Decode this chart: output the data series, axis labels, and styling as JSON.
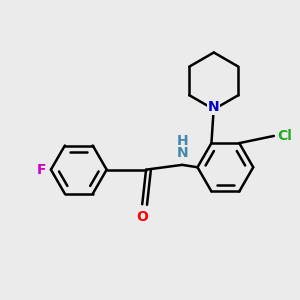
{
  "background_color": "#ebebeb",
  "bond_color": "#000000",
  "bond_width": 1.8,
  "atom_labels": {
    "F": {
      "color": "#cc00cc",
      "fontsize": 10,
      "fontweight": "bold"
    },
    "O": {
      "color": "#ff0000",
      "fontsize": 10,
      "fontweight": "bold"
    },
    "N": {
      "color": "#0000cc",
      "fontsize": 10,
      "fontweight": "bold"
    },
    "NH": {
      "color": "#4488aa",
      "fontsize": 10,
      "fontweight": "bold"
    },
    "Cl": {
      "color": "#22aa22",
      "fontsize": 10,
      "fontweight": "bold"
    }
  },
  "figsize": [
    3.0,
    3.0
  ],
  "dpi": 100
}
